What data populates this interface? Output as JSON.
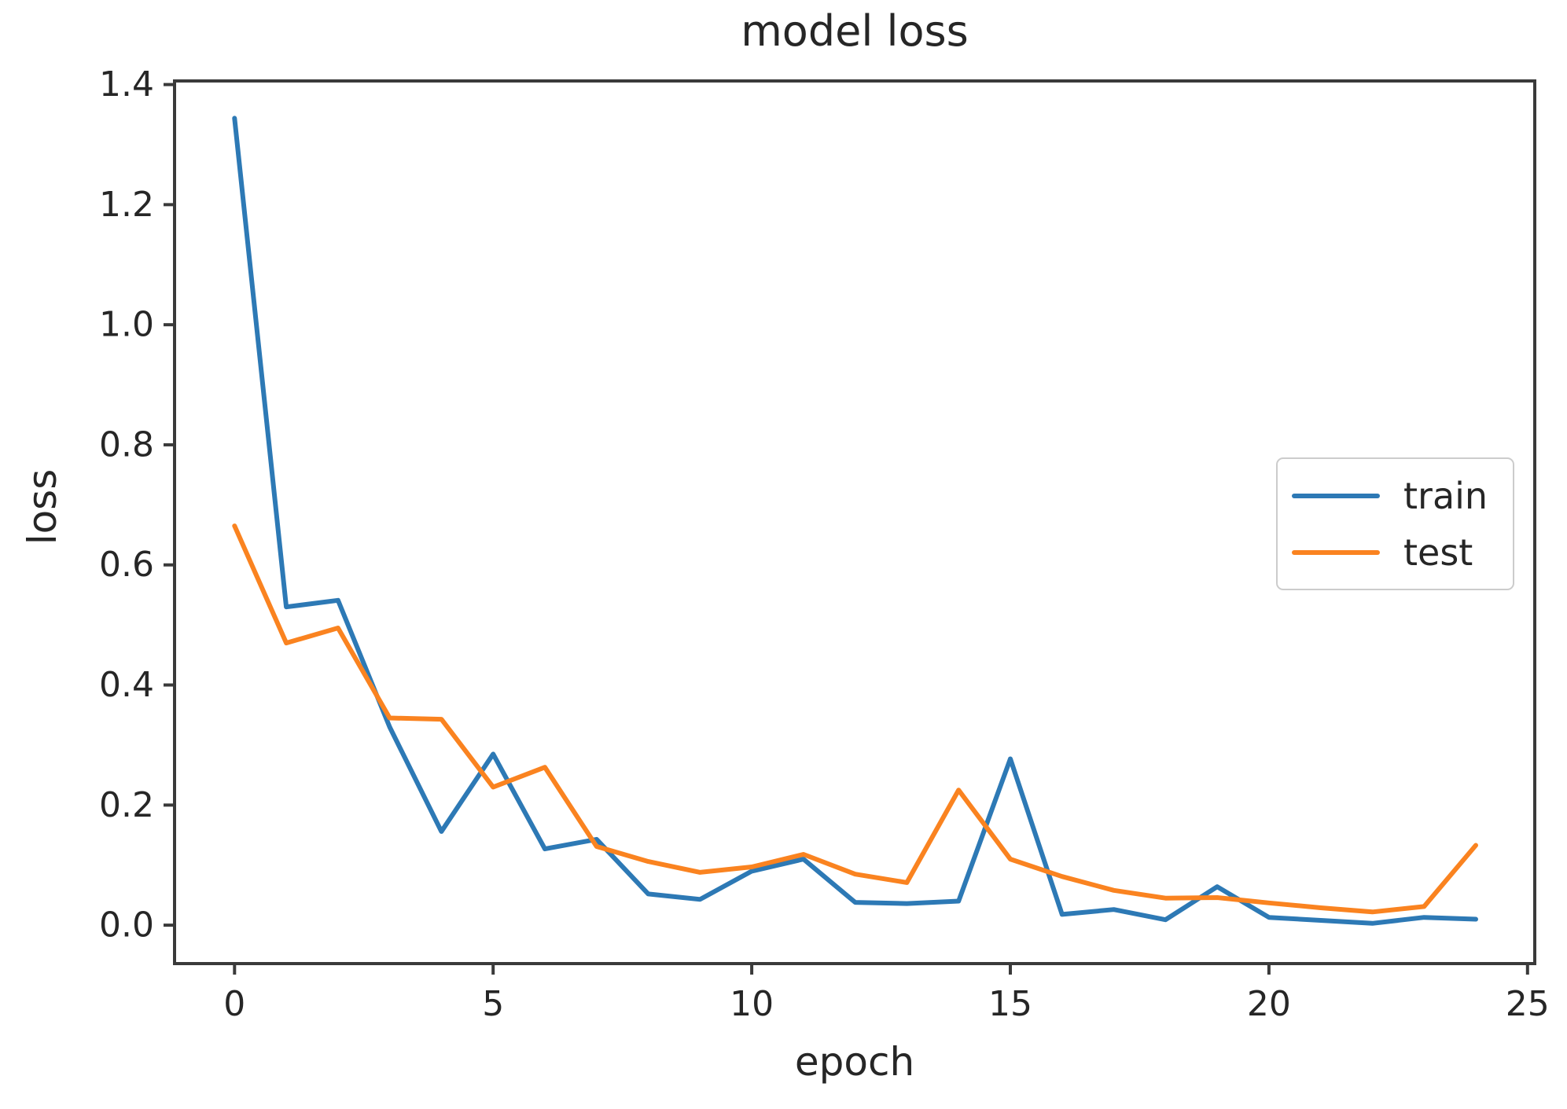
{
  "title": "model loss",
  "axes": {
    "xlabel": "epoch",
    "ylabel": "loss"
  },
  "legend": {
    "items": [
      {
        "label": "train",
        "color": "#2d79b5"
      },
      {
        "label": "test",
        "color": "#fa8320"
      }
    ]
  },
  "colors": {
    "spine": "#3a3a3a",
    "tick": "#3a3a3a",
    "text": "#262626",
    "background": "#ffffff",
    "train_line": "#2d79b5",
    "test_line": "#fa8320"
  },
  "chart_data": {
    "type": "line",
    "title": "model loss",
    "xlabel": "epoch",
    "ylabel": "loss",
    "x": [
      0,
      1,
      2,
      3,
      4,
      5,
      6,
      7,
      8,
      9,
      10,
      11,
      12,
      13,
      14,
      15,
      16,
      17,
      18,
      19,
      20,
      21,
      22,
      23,
      24
    ],
    "series": [
      {
        "name": "train",
        "color": "#2d79b5",
        "values": [
          1.344,
          0.53,
          0.541,
          0.33,
          0.156,
          0.285,
          0.127,
          0.143,
          0.052,
          0.043,
          0.09,
          0.11,
          0.038,
          0.036,
          0.04,
          0.277,
          0.018,
          0.026,
          0.009,
          0.064,
          0.013,
          0.008,
          0.003,
          0.013,
          0.01
        ]
      },
      {
        "name": "test",
        "color": "#fa8320",
        "values": [
          0.665,
          0.47,
          0.495,
          0.345,
          0.343,
          0.23,
          0.263,
          0.131,
          0.106,
          0.088,
          0.097,
          0.118,
          0.085,
          0.071,
          0.225,
          0.11,
          0.081,
          0.058,
          0.045,
          0.046,
          0.037,
          0.029,
          0.022,
          0.031,
          0.133
        ]
      }
    ],
    "xlim": [
      -1.16,
      25.14
    ],
    "ylim": [
      -0.064,
      1.406
    ],
    "x_ticks": [
      0,
      5,
      10,
      15,
      20,
      25
    ],
    "y_ticks": [
      "0.0",
      "0.2",
      "0.4",
      "0.6",
      "0.8",
      "1.0",
      "1.2",
      "1.4"
    ],
    "grid": false,
    "legend_position": "center right"
  }
}
